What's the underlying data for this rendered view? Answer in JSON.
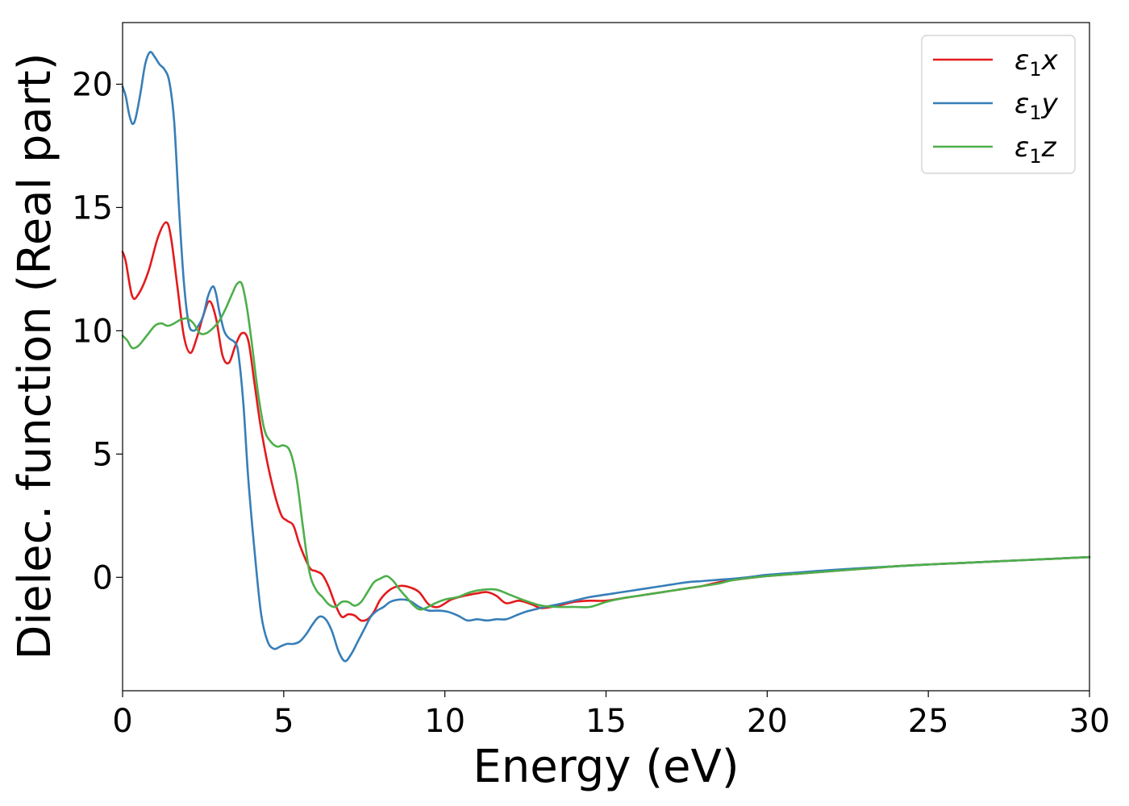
{
  "chart_data": {
    "type": "line",
    "title": "",
    "xlabel": "Energy (eV)",
    "ylabel": "Dielec. function (Real part)",
    "xlim": [
      0,
      30
    ],
    "ylim": [
      -4.6,
      22.5
    ],
    "xticks": [
      0,
      5,
      10,
      15,
      20,
      25,
      30
    ],
    "yticks": [
      0,
      5,
      10,
      15,
      20
    ],
    "grid": false,
    "legend_position": "top-right",
    "series": [
      {
        "name": "ε1x",
        "legend_base": "ε",
        "legend_sub": "1",
        "legend_suffix": "x",
        "color": "#e41a1c",
        "x": [
          0,
          0.1,
          0.3,
          0.5,
          0.8,
          1.1,
          1.35,
          1.5,
          1.7,
          1.9,
          2.1,
          2.3,
          2.5,
          2.7,
          2.9,
          3.1,
          3.3,
          3.5,
          3.7,
          3.9,
          4.1,
          4.3,
          4.6,
          4.9,
          5.1,
          5.3,
          5.5,
          5.8,
          6.0,
          6.2,
          6.4,
          6.6,
          6.8,
          7.0,
          7.2,
          7.4,
          7.6,
          7.8,
          8.0,
          8.3,
          8.6,
          8.9,
          9.2,
          9.5,
          9.8,
          10.2,
          10.6,
          11.0,
          11.3,
          11.6,
          11.9,
          12.3,
          12.7,
          13.0,
          13.5,
          14.0,
          14.5,
          15.0,
          15.5,
          16.0,
          16.5,
          17.0,
          17.5,
          18.0,
          18.5,
          19.0,
          20,
          21,
          22,
          23,
          24,
          25,
          26,
          27,
          28,
          29,
          30
        ],
        "values": [
          13.2,
          12.8,
          11.4,
          11.5,
          12.4,
          13.8,
          14.4,
          13.8,
          11.8,
          9.8,
          9.1,
          9.7,
          10.6,
          11.2,
          10.5,
          9.0,
          8.7,
          9.4,
          9.9,
          9.6,
          7.8,
          6.0,
          4.0,
          2.6,
          2.3,
          2.1,
          1.3,
          0.4,
          0.25,
          0.1,
          -0.4,
          -1.1,
          -1.6,
          -1.5,
          -1.55,
          -1.75,
          -1.7,
          -1.4,
          -0.9,
          -0.5,
          -0.35,
          -0.4,
          -0.6,
          -1.1,
          -1.2,
          -0.9,
          -0.75,
          -0.65,
          -0.6,
          -0.75,
          -1.05,
          -0.95,
          -1.1,
          -1.25,
          -1.15,
          -1.0,
          -0.95,
          -0.95,
          -0.85,
          -0.75,
          -0.65,
          -0.55,
          -0.45,
          -0.35,
          -0.2,
          -0.1,
          0.05,
          0.15,
          0.25,
          0.35,
          0.45,
          0.52,
          0.58,
          0.64,
          0.7,
          0.76,
          0.82
        ]
      },
      {
        "name": "ε1y",
        "legend_base": "ε",
        "legend_sub": "1",
        "legend_suffix": "y",
        "color": "#377eb8",
        "x": [
          0,
          0.1,
          0.2,
          0.3,
          0.4,
          0.55,
          0.7,
          0.85,
          1.0,
          1.15,
          1.3,
          1.45,
          1.6,
          1.75,
          1.9,
          2.05,
          2.2,
          2.35,
          2.5,
          2.65,
          2.8,
          2.9,
          3.0,
          3.15,
          3.3,
          3.5,
          3.6,
          3.75,
          3.9,
          4.1,
          4.3,
          4.5,
          4.7,
          4.9,
          5.1,
          5.3,
          5.5,
          5.7,
          5.9,
          6.1,
          6.3,
          6.5,
          6.7,
          6.9,
          7.1,
          7.3,
          7.5,
          7.7,
          7.9,
          8.1,
          8.3,
          8.6,
          8.9,
          9.2,
          9.5,
          9.8,
          10.1,
          10.4,
          10.7,
          11.0,
          11.3,
          11.6,
          11.9,
          12.2,
          12.5,
          12.8,
          13.1,
          13.5,
          14.0,
          14.5,
          15.0,
          15.5,
          16.0,
          16.5,
          17.0,
          17.5,
          18.0,
          18.5,
          19.0,
          19.5,
          20,
          21,
          22,
          23,
          24,
          25,
          26,
          27,
          28,
          29,
          30
        ],
        "values": [
          19.9,
          19.5,
          18.8,
          18.4,
          18.6,
          19.6,
          20.8,
          21.3,
          21.1,
          20.8,
          20.6,
          20.1,
          18.5,
          15.0,
          12.0,
          10.3,
          10.0,
          10.2,
          10.6,
          11.4,
          11.8,
          11.5,
          10.8,
          10.0,
          9.7,
          9.5,
          9.0,
          7.0,
          4.0,
          1.0,
          -1.5,
          -2.6,
          -2.9,
          -2.8,
          -2.7,
          -2.7,
          -2.6,
          -2.3,
          -1.9,
          -1.6,
          -1.7,
          -2.2,
          -3.0,
          -3.4,
          -3.1,
          -2.6,
          -2.1,
          -1.6,
          -1.35,
          -1.2,
          -1.0,
          -0.9,
          -0.95,
          -1.2,
          -1.35,
          -1.35,
          -1.4,
          -1.55,
          -1.75,
          -1.7,
          -1.75,
          -1.7,
          -1.7,
          -1.55,
          -1.4,
          -1.3,
          -1.2,
          -1.1,
          -0.95,
          -0.8,
          -0.7,
          -0.6,
          -0.5,
          -0.4,
          -0.3,
          -0.2,
          -0.15,
          -0.1,
          -0.05,
          0.02,
          0.1,
          0.2,
          0.3,
          0.38,
          0.45,
          0.52,
          0.58,
          0.64,
          0.7,
          0.76,
          0.82
        ]
      },
      {
        "name": "ε1z",
        "legend_base": "ε",
        "legend_sub": "1",
        "legend_suffix": "z",
        "color": "#4daf4a",
        "x": [
          0,
          0.15,
          0.3,
          0.5,
          0.75,
          1.0,
          1.2,
          1.4,
          1.6,
          1.8,
          2.0,
          2.2,
          2.4,
          2.6,
          2.8,
          3.0,
          3.2,
          3.4,
          3.55,
          3.7,
          3.85,
          4.0,
          4.2,
          4.4,
          4.6,
          4.8,
          5.0,
          5.2,
          5.4,
          5.6,
          5.8,
          6.0,
          6.2,
          6.4,
          6.6,
          6.8,
          7.0,
          7.2,
          7.4,
          7.6,
          7.8,
          8.0,
          8.2,
          8.4,
          8.6,
          8.8,
          9.0,
          9.2,
          9.4,
          9.7,
          10.0,
          10.4,
          10.8,
          11.2,
          11.6,
          12.0,
          12.5,
          13.0,
          13.5,
          14.0,
          14.5,
          15.0,
          15.5,
          16.0,
          16.5,
          17.0,
          17.5,
          18.0,
          18.5,
          19.0,
          20,
          21,
          22,
          23,
          24,
          25,
          26,
          27,
          28,
          29,
          30
        ],
        "values": [
          9.8,
          9.6,
          9.3,
          9.4,
          9.8,
          10.2,
          10.3,
          10.2,
          10.3,
          10.45,
          10.5,
          10.3,
          9.9,
          9.9,
          10.1,
          10.4,
          10.9,
          11.5,
          11.9,
          11.9,
          11.0,
          9.6,
          7.5,
          6.0,
          5.5,
          5.3,
          5.35,
          5.1,
          4.0,
          2.0,
          0.2,
          -0.5,
          -0.8,
          -1.1,
          -1.2,
          -1.0,
          -1.0,
          -1.15,
          -1.0,
          -0.6,
          -0.2,
          -0.05,
          0.05,
          -0.15,
          -0.5,
          -0.8,
          -1.1,
          -1.3,
          -1.25,
          -1.05,
          -0.9,
          -0.8,
          -0.6,
          -0.5,
          -0.5,
          -0.7,
          -0.95,
          -1.15,
          -1.2,
          -1.2,
          -1.2,
          -1.0,
          -0.85,
          -0.75,
          -0.65,
          -0.55,
          -0.45,
          -0.35,
          -0.25,
          -0.1,
          0.05,
          0.15,
          0.25,
          0.35,
          0.45,
          0.52,
          0.58,
          0.64,
          0.7,
          0.76,
          0.82
        ]
      }
    ]
  }
}
